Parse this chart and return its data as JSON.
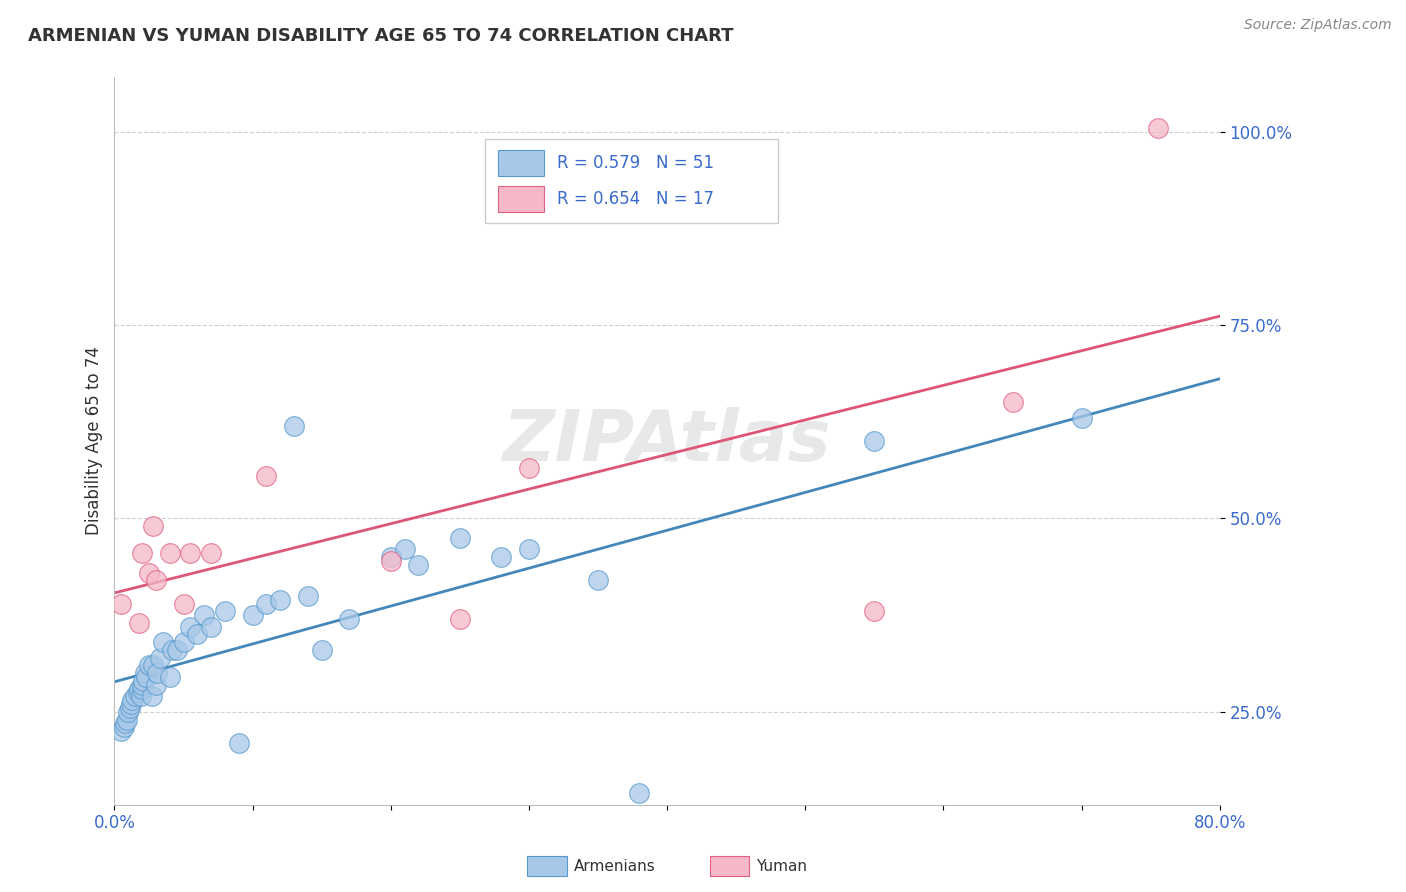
{
  "title": "ARMENIAN VS YUMAN DISABILITY AGE 65 TO 74 CORRELATION CHART",
  "source": "Source: ZipAtlas.com",
  "ylabel": "Disability Age 65 to 74",
  "xlim": [
    0.0,
    0.8
  ],
  "ylim": [
    0.13,
    1.07
  ],
  "xticks": [
    0.0,
    0.1,
    0.2,
    0.3,
    0.4,
    0.5,
    0.6,
    0.7,
    0.8
  ],
  "yticks": [
    0.25,
    0.5,
    0.75,
    1.0
  ],
  "ytick_labels": [
    "25.0%",
    "50.0%",
    "75.0%",
    "100.0%"
  ],
  "watermark": "ZIPAtlas",
  "armenian_R": 0.579,
  "armenian_N": 51,
  "yuman_R": 0.654,
  "yuman_N": 17,
  "armenian_color": "#a8c8e8",
  "yuman_color": "#f5b8c8",
  "armenian_edge_color": "#5599cc",
  "yuman_edge_color": "#e06080",
  "armenian_line_color": "#4488bb",
  "yuman_line_color": "#dd5577",
  "armenian_x": [
    0.005,
    0.007,
    0.008,
    0.009,
    0.01,
    0.011,
    0.012,
    0.013,
    0.015,
    0.017,
    0.018,
    0.019,
    0.02,
    0.02,
    0.021,
    0.022,
    0.023,
    0.025,
    0.027,
    0.028,
    0.03,
    0.031,
    0.033,
    0.035,
    0.04,
    0.042,
    0.045,
    0.05,
    0.055,
    0.06,
    0.065,
    0.07,
    0.08,
    0.09,
    0.1,
    0.11,
    0.12,
    0.13,
    0.14,
    0.15,
    0.17,
    0.2,
    0.21,
    0.22,
    0.25,
    0.28,
    0.3,
    0.35,
    0.38,
    0.55,
    0.7
  ],
  "armenian_y": [
    0.225,
    0.23,
    0.235,
    0.24,
    0.25,
    0.255,
    0.26,
    0.265,
    0.27,
    0.275,
    0.28,
    0.27,
    0.28,
    0.285,
    0.29,
    0.3,
    0.295,
    0.31,
    0.27,
    0.31,
    0.285,
    0.3,
    0.32,
    0.34,
    0.295,
    0.33,
    0.33,
    0.34,
    0.36,
    0.35,
    0.375,
    0.36,
    0.38,
    0.21,
    0.375,
    0.39,
    0.395,
    0.62,
    0.4,
    0.33,
    0.37,
    0.45,
    0.46,
    0.44,
    0.475,
    0.45,
    0.46,
    0.42,
    0.145,
    0.6,
    0.63
  ],
  "yuman_x": [
    0.005,
    0.018,
    0.02,
    0.025,
    0.028,
    0.03,
    0.04,
    0.05,
    0.055,
    0.07,
    0.11,
    0.2,
    0.25,
    0.3,
    0.55,
    0.65,
    0.755
  ],
  "yuman_y": [
    0.39,
    0.365,
    0.455,
    0.43,
    0.49,
    0.42,
    0.455,
    0.39,
    0.455,
    0.455,
    0.555,
    0.445,
    0.37,
    0.565,
    0.38,
    0.65,
    1.005
  ],
  "legend_armenian_label": "Armenians",
  "legend_yuman_label": "Yuman",
  "background_color": "#ffffff",
  "grid_color": "#cccccc",
  "text_color": "#3a6bcc",
  "title_color": "#333333",
  "legend_text_color": "#3a6bcc"
}
